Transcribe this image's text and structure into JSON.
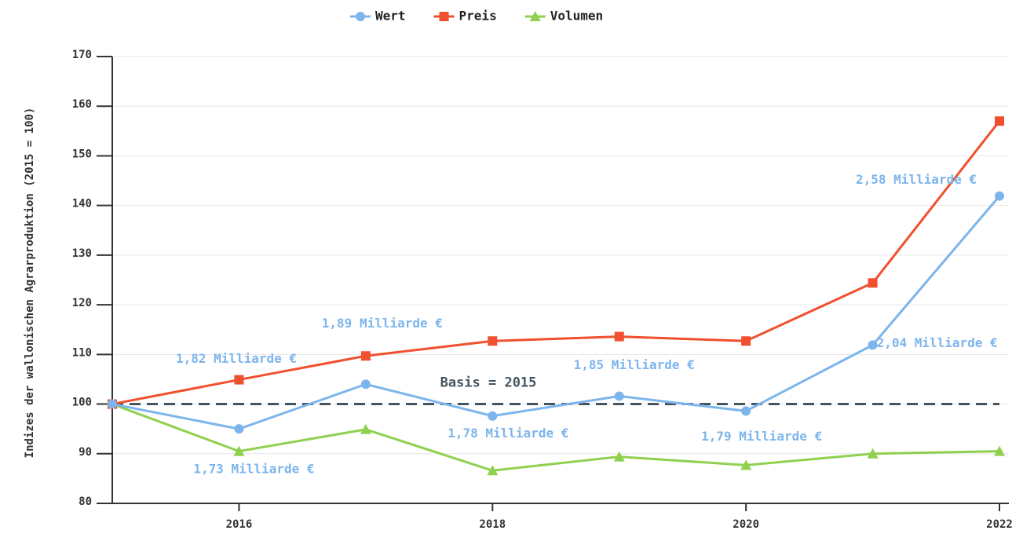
{
  "chart_data": {
    "type": "line",
    "y_label": "Indizes der wallonischen Agrarproduktion (2015 = 100)",
    "x": [
      2015,
      2016,
      2017,
      2018,
      2019,
      2020,
      2021,
      2022
    ],
    "series": [
      {
        "name": "Wert",
        "color": "#7cb5ec",
        "marker": "circle",
        "values": [
          100,
          95,
          104,
          97.6,
          101.6,
          98.6,
          111.9,
          141.9
        ]
      },
      {
        "name": "Preis",
        "color": "#f0502e",
        "marker": "square",
        "values": [
          100,
          104.9,
          109.7,
          112.7,
          113.6,
          112.7,
          124.4,
          157
        ]
      },
      {
        "name": "Volumen",
        "color": "#8fd14f",
        "marker": "triangle",
        "values": [
          100,
          90.5,
          94.9,
          86.6,
          89.4,
          87.7,
          90,
          90.5
        ]
      }
    ],
    "annotations": [
      "1,82 Milliarde €",
      "1,73 Milliarde €",
      "1,89 Milliarde €",
      "1,78 Milliarde €",
      "1,85 Milliarde €",
      "1,79 Milliarde €",
      "2,04 Milliarde €",
      "2,58 Milliarde €"
    ],
    "reference_line": {
      "value": 100,
      "label": "Basis = 2015",
      "color": "#455560"
    },
    "xlim": [
      2015,
      2022
    ],
    "xticks": [
      2016,
      2018,
      2020,
      2022
    ],
    "ylim": [
      80,
      170
    ],
    "yticks": [
      80,
      90,
      100,
      110,
      120,
      130,
      140,
      150,
      160,
      170
    ],
    "grid": true,
    "legend": "top"
  }
}
